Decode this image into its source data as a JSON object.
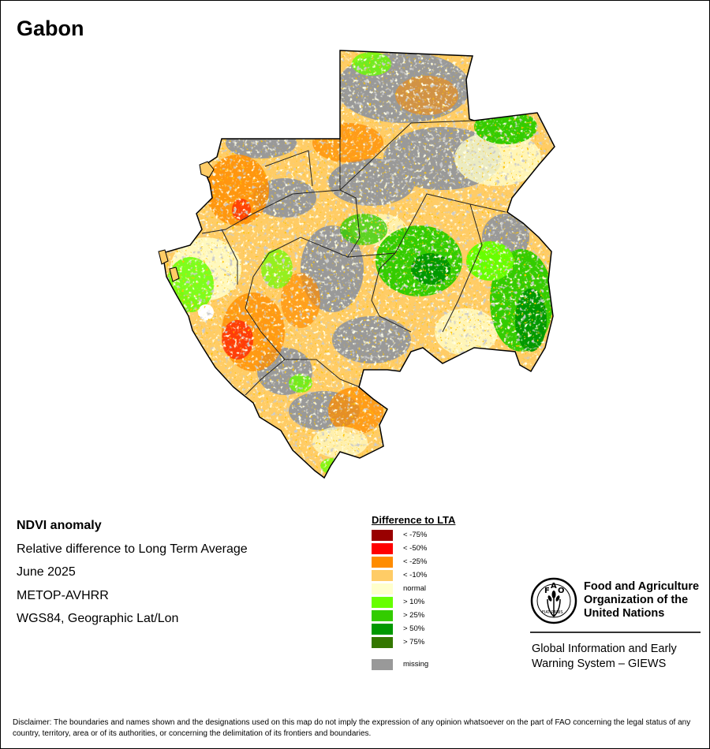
{
  "title": "Gabon",
  "info": {
    "heading": "NDVI anomaly",
    "lines": [
      "Relative difference to Long Term Average",
      "June 2025",
      "METOP-AVHRR",
      "WGS84, Geographic Lat/Lon"
    ]
  },
  "legend": {
    "title": "Difference to LTA",
    "classes": [
      {
        "label": "< -75%",
        "color": "#990000"
      },
      {
        "label": "< -50%",
        "color": "#ff0000"
      },
      {
        "label": "< -25%",
        "color": "#ff8c00"
      },
      {
        "label": "< -10%",
        "color": "#ffcc66"
      },
      {
        "label": "normal",
        "color": "#ffffcc"
      },
      {
        "label": "> 10%",
        "color": "#66ff00"
      },
      {
        "label": "> 25%",
        "color": "#33cc00"
      },
      {
        "label": "> 50%",
        "color": "#009900"
      },
      {
        "label": "> 75%",
        "color": "#337700"
      }
    ],
    "missing": {
      "label": "missing",
      "color": "#999999"
    }
  },
  "organization": {
    "logo_icon": "fao-logo-icon",
    "logo_letters": "FAO",
    "logo_motto": "FIAT PANIS",
    "name_lines": [
      "Food and Agriculture",
      "Organization of the",
      "United Nations"
    ],
    "program_lines": [
      "Global Information and Early",
      "Warning System – GIEWS"
    ]
  },
  "disclaimer": "Disclaimer: The boundaries and names shown and the designations used on this map do not imply the expression of any opinion whatsoever on the part of FAO concerning the legal status of any country, territory, area or of its authorities, or concerning the delimitation of its frontiers and boundaries."
}
